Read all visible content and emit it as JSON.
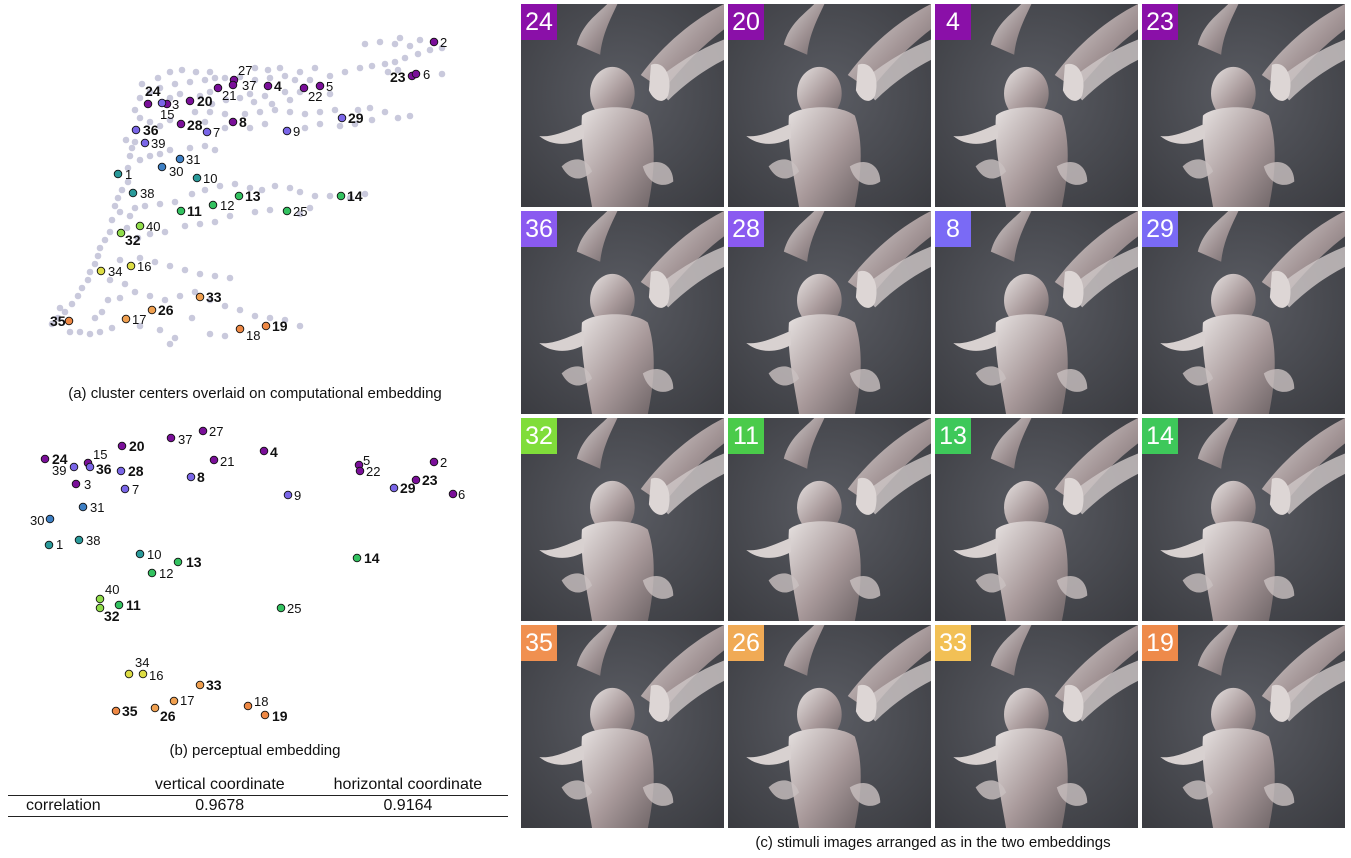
{
  "captions": {
    "a": "(a) cluster centers overlaid on computational embedding",
    "b": "(b) perceptual embedding",
    "c": "(c) stimuli images arranged as in the two embeddings"
  },
  "table": {
    "headers": [
      "",
      "vertical coordinate",
      "horizontal coordinate"
    ],
    "rows": [
      {
        "label": "correlation",
        "vertical": "0.9678",
        "horizontal": "0.9164"
      }
    ]
  },
  "colors": {
    "background_point": "#c9c9dc",
    "purple": "#7a0f99",
    "violet": "#7a66e8",
    "blue": "#3d7fc4",
    "teal": "#2a9a9a",
    "green": "#33c260",
    "lightgreen": "#90dd4a",
    "yellow": "#dddd44",
    "orange": "#f0a050",
    "darkorange": "#ee8844"
  },
  "bold_labels": [
    "24",
    "20",
    "4",
    "23",
    "36",
    "28",
    "8",
    "29",
    "32",
    "11",
    "13",
    "14",
    "35",
    "26",
    "33",
    "19"
  ],
  "stimuli_grid": [
    [
      {
        "label": "24",
        "color": "#8a10a8"
      },
      {
        "label": "20",
        "color": "#8a10a8"
      },
      {
        "label": "4",
        "color": "#8a10a8"
      },
      {
        "label": "23",
        "color": "#8a10a8"
      }
    ],
    [
      {
        "label": "36",
        "color": "#8a5af0"
      },
      {
        "label": "28",
        "color": "#8a5af0"
      },
      {
        "label": "8",
        "color": "#7a6af5"
      },
      {
        "label": "29",
        "color": "#7a6af5"
      }
    ],
    [
      {
        "label": "32",
        "color": "#80dd3a"
      },
      {
        "label": "11",
        "color": "#4acb4a"
      },
      {
        "label": "13",
        "color": "#3ec85a"
      },
      {
        "label": "14",
        "color": "#3ec85a"
      }
    ],
    [
      {
        "label": "35",
        "color": "#f09050"
      },
      {
        "label": "26",
        "color": "#f0aa55"
      },
      {
        "label": "33",
        "color": "#f2c055"
      },
      {
        "label": "19",
        "color": "#ee8a4a"
      }
    ]
  ],
  "computational_points": [
    {
      "label": "2",
      "color": "purple"
    },
    {
      "label": "27",
      "color": "purple"
    },
    {
      "label": "37",
      "color": "purple"
    },
    {
      "label": "4",
      "color": "purple"
    },
    {
      "label": "5",
      "color": "purple"
    },
    {
      "label": "22",
      "color": "purple"
    },
    {
      "label": "21",
      "color": "purple"
    },
    {
      "label": "23",
      "color": "purple"
    },
    {
      "label": "6",
      "color": "purple"
    },
    {
      "label": "24",
      "color": "purple"
    },
    {
      "label": "3",
      "color": "purple"
    },
    {
      "label": "20",
      "color": "purple"
    },
    {
      "label": "15",
      "color": "violet"
    },
    {
      "label": "36",
      "color": "violet"
    },
    {
      "label": "28",
      "color": "purple"
    },
    {
      "label": "7",
      "color": "violet"
    },
    {
      "label": "8",
      "color": "purple"
    },
    {
      "label": "9",
      "color": "violet"
    },
    {
      "label": "29",
      "color": "violet"
    },
    {
      "label": "39",
      "color": "violet"
    },
    {
      "label": "31",
      "color": "blue"
    },
    {
      "label": "30",
      "color": "blue"
    },
    {
      "label": "1",
      "color": "teal"
    },
    {
      "label": "10",
      "color": "teal"
    },
    {
      "label": "38",
      "color": "teal"
    },
    {
      "label": "13",
      "color": "green"
    },
    {
      "label": "12",
      "color": "green"
    },
    {
      "label": "11",
      "color": "green"
    },
    {
      "label": "14",
      "color": "green"
    },
    {
      "label": "25",
      "color": "green"
    },
    {
      "label": "40",
      "color": "lightgreen"
    },
    {
      "label": "32",
      "color": "lightgreen"
    },
    {
      "label": "16",
      "color": "yellow"
    },
    {
      "label": "34",
      "color": "yellow"
    },
    {
      "label": "33",
      "color": "orange"
    },
    {
      "label": "26",
      "color": "orange"
    },
    {
      "label": "17",
      "color": "orange"
    },
    {
      "label": "35",
      "color": "darkorange"
    },
    {
      "label": "18",
      "color": "darkorange"
    },
    {
      "label": "19",
      "color": "darkorange"
    }
  ],
  "perceptual_points": [
    {
      "label": "27",
      "color": "purple"
    },
    {
      "label": "37",
      "color": "purple"
    },
    {
      "label": "20",
      "color": "purple"
    },
    {
      "label": "4",
      "color": "purple"
    },
    {
      "label": "24",
      "color": "purple"
    },
    {
      "label": "15",
      "color": "purple"
    },
    {
      "label": "39",
      "color": "violet"
    },
    {
      "label": "36",
      "color": "violet"
    },
    {
      "label": "28",
      "color": "violet"
    },
    {
      "label": "3",
      "color": "purple"
    },
    {
      "label": "7",
      "color": "violet"
    },
    {
      "label": "21",
      "color": "purple"
    },
    {
      "label": "8",
      "color": "violet"
    },
    {
      "label": "9",
      "color": "violet"
    },
    {
      "label": "5",
      "color": "purple"
    },
    {
      "label": "22",
      "color": "purple"
    },
    {
      "label": "2",
      "color": "purple"
    },
    {
      "label": "23",
      "color": "purple"
    },
    {
      "label": "29",
      "color": "violet"
    },
    {
      "label": "6",
      "color": "purple"
    },
    {
      "label": "31",
      "color": "blue"
    },
    {
      "label": "30",
      "color": "blue"
    },
    {
      "label": "1",
      "color": "teal"
    },
    {
      "label": "38",
      "color": "teal"
    },
    {
      "label": "10",
      "color": "teal"
    },
    {
      "label": "13",
      "color": "green"
    },
    {
      "label": "12",
      "color": "green"
    },
    {
      "label": "14",
      "color": "green"
    },
    {
      "label": "40",
      "color": "lightgreen"
    },
    {
      "label": "11",
      "color": "green"
    },
    {
      "label": "32",
      "color": "lightgreen"
    },
    {
      "label": "25",
      "color": "green"
    },
    {
      "label": "34",
      "color": "yellow"
    },
    {
      "label": "16",
      "color": "yellow"
    },
    {
      "label": "33",
      "color": "orange"
    },
    {
      "label": "17",
      "color": "orange"
    },
    {
      "label": "18",
      "color": "darkorange"
    },
    {
      "label": "35",
      "color": "darkorange"
    },
    {
      "label": "26",
      "color": "orange"
    },
    {
      "label": "19",
      "color": "darkorange"
    }
  ]
}
